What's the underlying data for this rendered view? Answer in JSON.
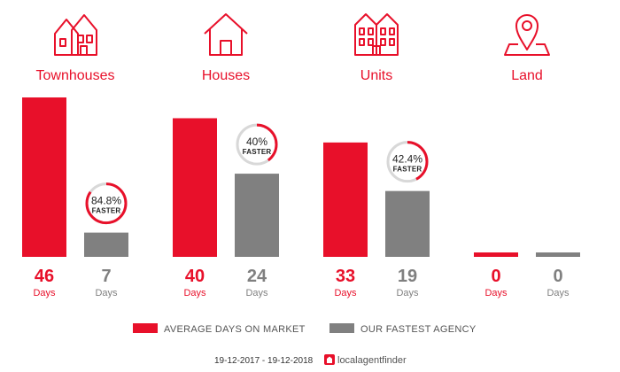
{
  "chart_data": {
    "type": "bar",
    "categories": [
      "Townhouses",
      "Houses",
      "Units",
      "Land"
    ],
    "series": [
      {
        "name": "AVERAGE DAYS ON MARKET",
        "values": [
          46,
          40,
          33,
          0
        ]
      },
      {
        "name": "OUR FASTEST AGENCY",
        "values": [
          7,
          24,
          19,
          0
        ]
      }
    ],
    "unit_label": "Days",
    "faster": [
      {
        "percent": 84.8,
        "label": "84.8%",
        "sub": "FASTER"
      },
      {
        "percent": 40,
        "label": "40%",
        "sub": "FASTER"
      },
      {
        "percent": 42.4,
        "label": "42.4%",
        "sub": "FASTER"
      },
      null
    ],
    "icons": [
      "townhouse-icon",
      "house-icon",
      "units-icon",
      "land-pin-icon"
    ],
    "ylim": [
      0,
      46
    ],
    "colors": {
      "average": "#e8102a",
      "agency": "#808080",
      "ring_bg": "#d8d8d8"
    }
  },
  "legend": {
    "average_label": "AVERAGE DAYS ON MARKET",
    "agency_label": "OUR FASTEST AGENCY"
  },
  "footer": {
    "date_range": "19-12-2017 - 19-12-2018",
    "brand": "localagentfinder"
  }
}
